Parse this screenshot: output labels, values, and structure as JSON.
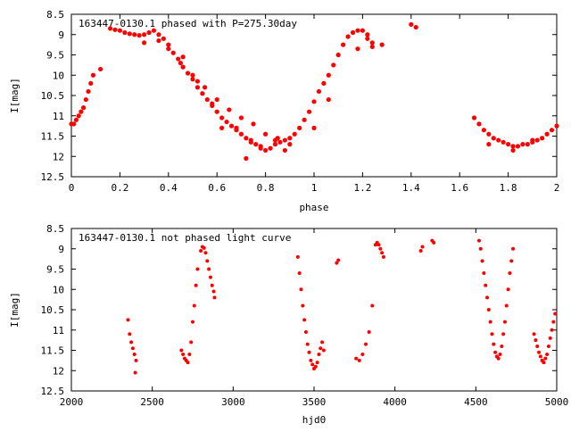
{
  "chart_data": [
    {
      "type": "scatter",
      "title": "163447-0130.1 phased with P=275.30day",
      "xlabel": "phase",
      "ylabel": "I[mag]",
      "xlim": [
        0,
        2
      ],
      "ylim": [
        12.5,
        8.5
      ],
      "y_inverted": true,
      "xticks": [
        "0",
        "0.2",
        "0.4",
        "0.6",
        "0.8",
        "1",
        "1.2",
        "1.4",
        "1.6",
        "1.8",
        "2"
      ],
      "yticks": [
        "8.5",
        "9",
        "9.5",
        "10",
        "10.5",
        "11",
        "11.5",
        "12",
        "12.5"
      ],
      "grid": false,
      "marker_color": "#ff0000",
      "series": [
        {
          "x": [
            0.0,
            0.01,
            0.02,
            0.03,
            0.04,
            0.05,
            0.06,
            0.07,
            0.08,
            0.09,
            0.12,
            0.16,
            0.18,
            0.2,
            0.22,
            0.24,
            0.26,
            0.28,
            0.3,
            0.32,
            0.34,
            0.36,
            0.38,
            0.4,
            0.42,
            0.44,
            0.46,
            0.48,
            0.5,
            0.52,
            0.54,
            0.56,
            0.58,
            0.6,
            0.62,
            0.64,
            0.66,
            0.68,
            0.7,
            0.72,
            0.74,
            0.76,
            0.78,
            0.8,
            0.82,
            0.84,
            0.86,
            0.88,
            0.9,
            0.92,
            0.94,
            0.96,
            0.98,
            1.0,
            1.02,
            1.04,
            1.06,
            1.08,
            1.1,
            1.12,
            1.14,
            1.16,
            1.18,
            1.2,
            1.22,
            1.24,
            1.28,
            1.4,
            1.42,
            1.66,
            1.68,
            1.7,
            1.72,
            1.74,
            1.76,
            1.78,
            1.8,
            1.82,
            1.84,
            1.86,
            1.88,
            1.9,
            1.92,
            1.94,
            1.96,
            1.98,
            2.0,
            0.3,
            0.36,
            0.4,
            0.45,
            0.5,
            0.55,
            0.6,
            0.65,
            0.7,
            0.75,
            0.8,
            0.85,
            0.9,
            0.62,
            0.72,
            1.72,
            1.82,
            1.9,
            0.46,
            0.52,
            0.58,
            0.68,
            0.74,
            0.78,
            0.84,
            0.88,
            1.0,
            1.06,
            1.18,
            1.22,
            1.24
          ],
          "y": [
            11.2,
            11.2,
            11.1,
            11.0,
            10.9,
            10.8,
            10.6,
            10.4,
            10.2,
            10.0,
            9.85,
            8.85,
            8.88,
            8.9,
            8.95,
            8.98,
            9.0,
            9.02,
            9.0,
            8.95,
            8.9,
            9.0,
            9.1,
            9.25,
            9.45,
            9.6,
            9.8,
            9.95,
            10.1,
            10.3,
            10.45,
            10.6,
            10.75,
            10.9,
            11.05,
            11.15,
            11.25,
            11.35,
            11.45,
            11.55,
            11.65,
            11.7,
            11.8,
            11.85,
            11.8,
            11.7,
            11.65,
            11.6,
            11.55,
            11.45,
            11.3,
            11.1,
            10.9,
            10.65,
            10.4,
            10.2,
            10.0,
            9.75,
            9.5,
            9.25,
            9.05,
            8.95,
            8.9,
            8.9,
            9.0,
            9.2,
            9.25,
            8.75,
            8.82,
            11.05,
            11.2,
            11.35,
            11.45,
            11.55,
            11.6,
            11.65,
            11.7,
            11.75,
            11.75,
            11.7,
            11.7,
            11.65,
            11.6,
            11.55,
            11.45,
            11.35,
            11.25,
            9.2,
            9.15,
            9.35,
            9.7,
            10.0,
            10.3,
            10.6,
            10.85,
            11.05,
            11.2,
            11.45,
            11.55,
            11.7,
            11.3,
            12.05,
            11.7,
            11.85,
            11.6,
            9.55,
            10.15,
            10.7,
            11.3,
            11.6,
            11.75,
            11.6,
            11.85,
            11.3,
            10.6,
            9.35,
            9.1,
            9.3
          ]
        }
      ]
    },
    {
      "type": "scatter",
      "title": "163447-0130.1 not phased light curve",
      "xlabel": "hjd0",
      "ylabel": "I[mag]",
      "xlim": [
        2000,
        5000
      ],
      "ylim": [
        12.5,
        8.5
      ],
      "y_inverted": true,
      "xticks": [
        "2000",
        "2500",
        "3000",
        "3500",
        "4000",
        "4500",
        "5000"
      ],
      "yticks": [
        "8.5",
        "9",
        "9.5",
        "10",
        "10.5",
        "11",
        "11.5",
        "12",
        "12.5"
      ],
      "grid": false,
      "marker_color": "#ff0000",
      "series": [
        {
          "x": [
            2350,
            2360,
            2370,
            2380,
            2390,
            2400,
            2395,
            2680,
            2690,
            2700,
            2710,
            2720,
            2730,
            2740,
            2750,
            2760,
            2770,
            2780,
            2800,
            2810,
            2820,
            2830,
            2840,
            2850,
            2860,
            2870,
            2880,
            2885,
            3400,
            3410,
            3420,
            3430,
            3440,
            3450,
            3460,
            3470,
            3480,
            3490,
            3500,
            3510,
            3520,
            3530,
            3540,
            3550,
            3560,
            3640,
            3650,
            3760,
            3780,
            3800,
            3820,
            3840,
            3860,
            3880,
            3890,
            3900,
            3910,
            3920,
            3930,
            4160,
            4170,
            4230,
            4240,
            4520,
            4530,
            4540,
            4550,
            4560,
            4570,
            4580,
            4590,
            4600,
            4610,
            4620,
            4630,
            4640,
            4650,
            4660,
            4670,
            4680,
            4690,
            4700,
            4710,
            4720,
            4730,
            4860,
            4870,
            4880,
            4890,
            4900,
            4910,
            4920,
            4930,
            4940,
            4950,
            4960,
            4970,
            4980,
            4990
          ],
          "y": [
            10.75,
            11.1,
            11.3,
            11.45,
            11.6,
            11.75,
            12.05,
            11.5,
            11.6,
            11.7,
            11.75,
            11.8,
            11.6,
            11.3,
            10.8,
            10.4,
            9.9,
            9.5,
            9.05,
            8.95,
            8.98,
            9.1,
            9.3,
            9.5,
            9.7,
            9.9,
            10.05,
            10.2,
            9.2,
            9.6,
            10.0,
            10.4,
            10.75,
            11.05,
            11.35,
            11.55,
            11.75,
            11.85,
            11.95,
            11.9,
            11.8,
            11.6,
            11.45,
            11.3,
            11.5,
            9.35,
            9.28,
            11.7,
            11.75,
            11.6,
            11.35,
            11.05,
            10.4,
            8.9,
            8.85,
            8.9,
            9.0,
            9.1,
            9.2,
            9.05,
            8.95,
            8.8,
            8.85,
            8.8,
            9.0,
            9.3,
            9.6,
            9.9,
            10.2,
            10.5,
            10.8,
            11.1,
            11.35,
            11.55,
            11.65,
            11.7,
            11.6,
            11.4,
            11.1,
            10.8,
            10.4,
            10.0,
            9.6,
            9.3,
            9.0,
            11.1,
            11.25,
            11.4,
            11.55,
            11.65,
            11.75,
            11.8,
            11.7,
            11.6,
            11.4,
            11.2,
            11.0,
            10.8,
            10.6
          ]
        }
      ]
    }
  ]
}
